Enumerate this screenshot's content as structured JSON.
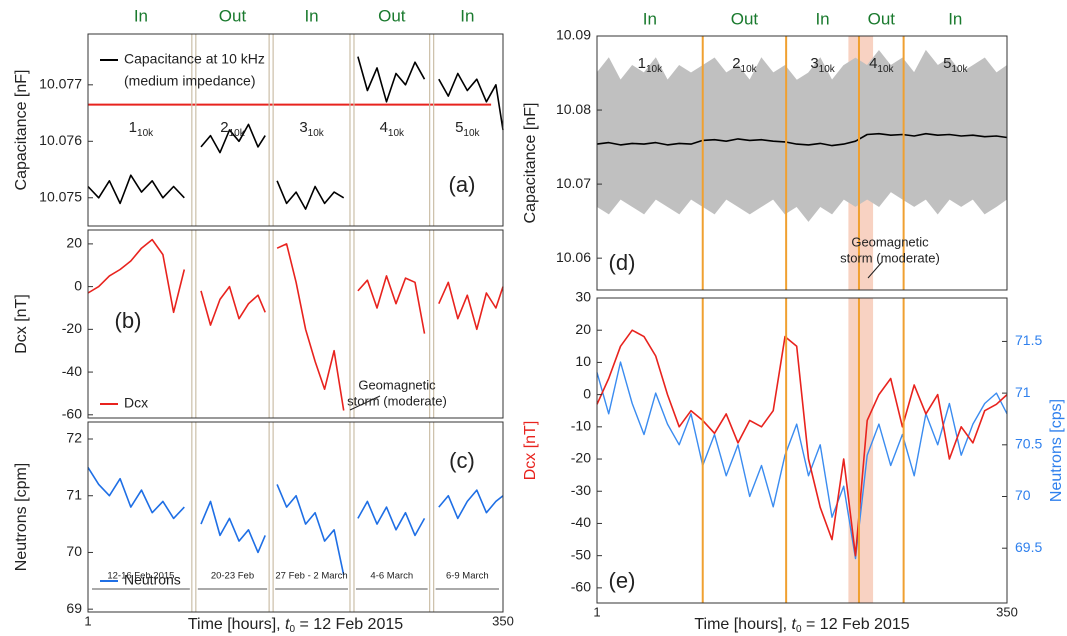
{
  "chart_data": [
    {
      "type": "line",
      "panel_label": "(a)",
      "ylabel": "Capacitance [nF]",
      "zones": [
        "In",
        "Out",
        "In",
        "Out",
        "In"
      ],
      "zone_color": "#1a7a2e",
      "segments": [
        {
          "main": "1",
          "sub": "10k"
        },
        {
          "main": "2",
          "sub": "10k"
        },
        {
          "main": "3",
          "sub": "10k"
        },
        {
          "main": "4",
          "sub": "10k"
        },
        {
          "main": "5",
          "sub": "10k"
        }
      ],
      "boundaries": [
        90,
        155,
        223,
        290
      ],
      "boundary_style": "double",
      "boundary_color": "#cbbfa8",
      "xlim": [
        1,
        350
      ],
      "ylim": [
        10.0745,
        10.0779
      ],
      "yticks": [
        10.075,
        10.076,
        10.077
      ],
      "x": [
        1,
        10,
        19,
        28,
        37,
        46,
        55,
        64,
        73,
        82,
        90,
        96,
        104,
        112,
        120,
        128,
        136,
        144,
        150,
        155,
        160,
        168,
        176,
        184,
        192,
        200,
        208,
        216,
        223,
        228,
        236,
        244,
        252,
        260,
        268,
        276,
        284,
        290,
        296,
        304,
        312,
        320,
        328,
        336,
        344,
        350
      ],
      "series": [
        {
          "name": "Capacitance at 10 kHz",
          "note": "(medium impedance)",
          "color": "#000000",
          "values": [
            10.0752,
            10.075,
            10.0753,
            10.0749,
            10.0754,
            10.0751,
            10.0753,
            10.075,
            10.0752,
            10.075,
            null,
            10.0759,
            10.0761,
            10.0758,
            10.0762,
            10.076,
            10.0763,
            10.0759,
            10.0761,
            null,
            10.0753,
            10.0749,
            10.0751,
            10.0748,
            10.0752,
            10.0749,
            10.0751,
            10.075,
            null,
            10.0775,
            10.0769,
            10.0773,
            10.0767,
            10.0772,
            10.077,
            10.0774,
            10.0771,
            null,
            10.0771,
            10.0768,
            10.0772,
            10.0769,
            10.0771,
            10.0767,
            10.077,
            10.0762
          ]
        }
      ],
      "hline": {
        "value": 10.07665,
        "x": [
          1,
          340
        ],
        "color": "#e8231e"
      }
    },
    {
      "type": "line",
      "panel_label": "(b)",
      "ylabel": "Dcx [nT]",
      "annotation": [
        "Geomagnetic",
        "storm (moderate)"
      ],
      "boundaries": [
        90,
        155,
        223,
        290
      ],
      "boundary_style": "double",
      "boundary_color": "#cbbfa8",
      "xlim": [
        1,
        350
      ],
      "ylim": [
        -61.5,
        26.5
      ],
      "yticks": [
        -60,
        -40,
        -20,
        0,
        20
      ],
      "x": [
        1,
        10,
        19,
        28,
        37,
        46,
        55,
        64,
        73,
        82,
        90,
        96,
        104,
        112,
        120,
        128,
        136,
        144,
        150,
        155,
        160,
        168,
        176,
        184,
        192,
        200,
        208,
        216,
        223,
        228,
        236,
        244,
        252,
        260,
        268,
        276,
        284,
        290,
        296,
        304,
        312,
        320,
        328,
        336,
        344,
        350
      ],
      "series": [
        {
          "name": "Dcx",
          "color": "#e8231e",
          "values": [
            -3,
            0,
            5,
            8,
            12,
            18,
            22,
            15,
            -12,
            8,
            null,
            -2,
            -18,
            -6,
            0,
            -15,
            -8,
            -4,
            -12,
            null,
            18,
            20,
            2,
            -20,
            -35,
            -48,
            -30,
            -58,
            null,
            -2,
            3,
            -10,
            5,
            -8,
            4,
            2,
            -22,
            null,
            -8,
            2,
            -15,
            -4,
            -20,
            -3,
            -10,
            0
          ]
        }
      ]
    },
    {
      "type": "line",
      "panel_label": "(c)",
      "ylabel": "Neutrons [cpm]",
      "date_labels": [
        "12-16 Feb 2015",
        "20-23 Feb",
        "27 Feb - 2 March",
        "4-6 March",
        "6-9 March"
      ],
      "boundaries": [
        90,
        155,
        223,
        290
      ],
      "boundary_style": "double",
      "boundary_color": "#cbbfa8",
      "xlim": [
        1,
        350
      ],
      "xticks": [
        1,
        350
      ],
      "ylim": [
        68.95,
        72.3
      ],
      "yticks": [
        69,
        70,
        71,
        72
      ],
      "xlabel": {
        "pre": "Time [hours], ",
        "var": "t",
        "sub": "0",
        "post": " = 12 Feb 2015"
      },
      "x": [
        1,
        10,
        19,
        28,
        37,
        46,
        55,
        64,
        73,
        82,
        90,
        96,
        104,
        112,
        120,
        128,
        136,
        144,
        150,
        155,
        160,
        168,
        176,
        184,
        192,
        200,
        208,
        216,
        223,
        228,
        236,
        244,
        252,
        260,
        268,
        276,
        284,
        290,
        296,
        304,
        312,
        320,
        328,
        336,
        344,
        350
      ],
      "series": [
        {
          "name": "Neutrons",
          "color": "#1f6fe5",
          "values": [
            71.5,
            71.2,
            71.0,
            71.3,
            70.8,
            71.1,
            70.7,
            70.9,
            70.6,
            70.8,
            null,
            70.5,
            70.9,
            70.3,
            70.6,
            70.2,
            70.4,
            70.0,
            70.3,
            null,
            71.2,
            70.8,
            71.0,
            70.5,
            70.7,
            70.2,
            70.4,
            69.6,
            null,
            70.6,
            70.9,
            70.5,
            70.8,
            70.4,
            70.7,
            70.3,
            70.6,
            null,
            70.8,
            71.0,
            70.6,
            70.9,
            71.1,
            70.7,
            70.9,
            71.0
          ]
        }
      ]
    },
    {
      "type": "line",
      "panel_label": "(d)",
      "ylabel": "Capacitance [nF]",
      "annotation": [
        "Geomagnetic",
        "storm (moderate)"
      ],
      "zones": [
        "In",
        "Out",
        "In",
        "Out",
        "In"
      ],
      "zone_color": "#1a7a2e",
      "segments": [
        {
          "main": "1",
          "sub": "10k"
        },
        {
          "main": "2",
          "sub": "10k"
        },
        {
          "main": "3",
          "sub": "10k"
        },
        {
          "main": "4",
          "sub": "10k"
        },
        {
          "main": "5",
          "sub": "10k"
        }
      ],
      "boundaries": [
        91,
        162,
        224,
        262
      ],
      "boundary_style": "single",
      "boundary_color": "#f0a030",
      "shade": [
        215,
        236
      ],
      "shade_color": "#f4b49a",
      "xlim": [
        1,
        350
      ],
      "ylim": [
        10.0557,
        10.09
      ],
      "yticks": [
        10.06,
        10.07,
        10.08,
        10.09
      ],
      "x": [
        1,
        11,
        21,
        31,
        41,
        51,
        61,
        71,
        81,
        91,
        101,
        111,
        121,
        131,
        141,
        151,
        161,
        171,
        181,
        191,
        201,
        211,
        221,
        231,
        241,
        251,
        261,
        271,
        281,
        291,
        301,
        311,
        321,
        331,
        341,
        350
      ],
      "band": {
        "color": "#c0c0c0",
        "upper": [
          10.085,
          10.087,
          10.084,
          10.086,
          10.085,
          10.087,
          10.084,
          10.086,
          10.085,
          10.086,
          10.087,
          10.085,
          10.086,
          10.084,
          10.087,
          10.085,
          10.086,
          10.084,
          10.085,
          10.087,
          10.084,
          10.086,
          10.087,
          10.086,
          10.088,
          10.086,
          10.087,
          10.085,
          10.088,
          10.086,
          10.087,
          10.085,
          10.086,
          10.087,
          10.085,
          10.086
        ],
        "lower": [
          10.067,
          10.066,
          10.068,
          10.067,
          10.066,
          10.068,
          10.067,
          10.066,
          10.068,
          10.067,
          10.066,
          10.068,
          10.067,
          10.066,
          10.067,
          10.068,
          10.066,
          10.067,
          10.065,
          10.067,
          10.066,
          10.068,
          10.067,
          10.068,
          10.067,
          10.069,
          10.068,
          10.067,
          10.068,
          10.066,
          10.068,
          10.067,
          10.068,
          10.066,
          10.067,
          10.068
        ]
      },
      "series": [
        {
          "color": "#000000",
          "values": [
            10.0754,
            10.0756,
            10.0753,
            10.0755,
            10.0754,
            10.0756,
            10.0753,
            10.0755,
            10.0754,
            10.0759,
            10.076,
            10.0758,
            10.0761,
            10.0759,
            10.076,
            10.0758,
            10.0757,
            10.0754,
            10.0753,
            10.0755,
            10.0752,
            10.0754,
            10.0758,
            10.0767,
            10.0768,
            10.0766,
            10.0767,
            10.0765,
            10.0768,
            10.0766,
            10.0767,
            10.0765,
            10.0766,
            10.0764,
            10.0765,
            10.0763
          ]
        }
      ]
    },
    {
      "type": "line",
      "panel_label": "(e)",
      "ylabel": "Dcx [nT]",
      "ylabel_color": "#e8231e",
      "y2label": "Neutrons [cps]",
      "y2label_color": "#2f80ed",
      "boundaries": [
        91,
        162,
        224,
        262
      ],
      "boundary_style": "single",
      "boundary_color": "#f0a030",
      "shade": [
        215,
        236
      ],
      "shade_color": "#f4b49a",
      "xlim": [
        1,
        350
      ],
      "xticks": [
        1,
        350
      ],
      "ylim": [
        -64.7,
        30
      ],
      "yticks": [
        -60,
        -50,
        -40,
        -30,
        -20,
        -10,
        0,
        10,
        20,
        30
      ],
      "y2lim": [
        68.97,
        71.92
      ],
      "y2ticks": [
        69.5,
        70,
        70.5,
        71,
        71.5
      ],
      "xlabel": {
        "pre": "Time [hours], ",
        "var": "t",
        "sub": "0",
        "post": " = 12 Feb 2015"
      },
      "x": [
        1,
        11,
        21,
        31,
        41,
        51,
        61,
        71,
        81,
        91,
        101,
        111,
        121,
        131,
        141,
        151,
        161,
        171,
        181,
        191,
        201,
        211,
        221,
        231,
        241,
        251,
        261,
        271,
        281,
        291,
        301,
        311,
        321,
        331,
        341,
        350
      ],
      "series": [
        {
          "color": "#3b8cf0",
          "axis": "y2",
          "values": [
            71.2,
            70.8,
            71.3,
            70.9,
            70.6,
            71.0,
            70.7,
            70.5,
            70.8,
            70.3,
            70.6,
            70.2,
            70.5,
            70.0,
            70.3,
            69.9,
            70.4,
            70.7,
            70.2,
            70.5,
            69.8,
            70.1,
            69.4,
            70.4,
            70.7,
            70.3,
            70.6,
            70.2,
            70.8,
            70.5,
            70.9,
            70.4,
            70.7,
            70.9,
            71.0,
            70.8
          ]
        },
        {
          "color": "#e8231e",
          "values": [
            -3,
            5,
            15,
            20,
            18,
            12,
            0,
            -10,
            -5,
            -8,
            -12,
            -6,
            -15,
            -8,
            -10,
            -5,
            18,
            15,
            -20,
            -35,
            -45,
            -20,
            -50,
            -8,
            0,
            5,
            -10,
            3,
            -6,
            0,
            -20,
            -10,
            -15,
            -5,
            -3,
            0
          ]
        }
      ]
    }
  ]
}
